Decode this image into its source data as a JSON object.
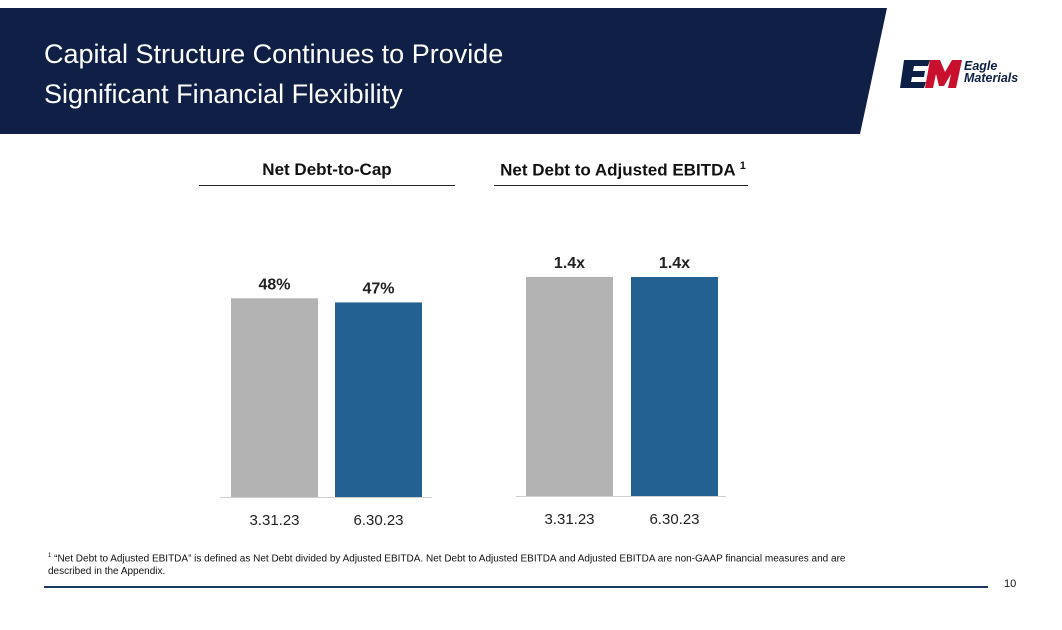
{
  "slide": {
    "title": "Capital Structure Continues to Provide\n Significant Financial Flexibility",
    "page_number": "10",
    "colors": {
      "banner": "#0f1f45",
      "bar_prior": "#b3b3b3",
      "bar_current": "#246193"
    }
  },
  "logo": {
    "mark": "EM",
    "name": "Eagle\nMaterials"
  },
  "chart_data": [
    {
      "type": "bar",
      "title": "Net Debt-to-Cap",
      "categories": [
        "3.31.23",
        "6.30.23"
      ],
      "values": [
        48,
        47
      ],
      "value_labels": [
        "48%",
        "47%"
      ],
      "unit": "%",
      "ylim": [
        0,
        50
      ]
    },
    {
      "type": "bar",
      "title": "Net Debt to Adjusted EBITDA",
      "title_footnote": "1",
      "categories": [
        "3.31.23",
        "6.30.23"
      ],
      "values": [
        1.4,
        1.4
      ],
      "value_labels": [
        "1.4x",
        "1.4x"
      ],
      "unit": "x",
      "ylim": [
        0,
        1.4
      ]
    }
  ],
  "footnote": {
    "marker": "1",
    "text": " “Net Debt to Adjusted EBITDA” is defined as Net Debt divided by Adjusted EBITDA.  Net Debt to Adjusted EBITDA and Adjusted EBITDA are non-GAAP financial measures and are described in the Appendix."
  }
}
